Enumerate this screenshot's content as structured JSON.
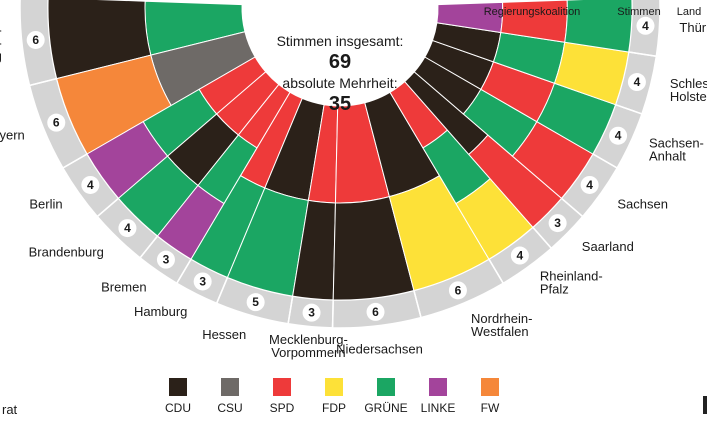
{
  "chart_data": {
    "type": "semicircle-seat-chart",
    "headers": {
      "coalition": "Regierungskoalition",
      "votes": "Stimmen",
      "state": "Land"
    },
    "center": {
      "total_label": "Stimmen insgesamt:",
      "total_value": "69",
      "majority_label": "absolute Mehrheit:",
      "majority_value": "35"
    },
    "colors": {
      "CDU": "#2b2119",
      "CSU": "#6e6a67",
      "SPD": "#ee3a3a",
      "FDP": "#fde138",
      "GRÜNE": "#1ba663",
      "LINKE": "#a3449b",
      "FW": "#f5873a"
    },
    "legend": [
      "CDU",
      "CSU",
      "SPD",
      "FDP",
      "GRÜNE",
      "LINKE",
      "FW"
    ],
    "states": [
      {
        "label": [
          "Baden-",
          "Württem-",
          "berg"
        ],
        "votes": 6,
        "coalition": [
          "GRÜNE",
          "CDU"
        ]
      },
      {
        "label": [
          "Bayern"
        ],
        "votes": 6,
        "coalition": [
          "CSU",
          "FW"
        ]
      },
      {
        "label": [
          "Berlin"
        ],
        "votes": 4,
        "coalition": [
          "SPD",
          "GRÜNE",
          "LINKE"
        ]
      },
      {
        "label": [
          "Brandenburg"
        ],
        "votes": 4,
        "coalition": [
          "SPD",
          "CDU",
          "GRÜNE"
        ]
      },
      {
        "label": [
          "Bremen"
        ],
        "votes": 3,
        "coalition": [
          "SPD",
          "GRÜNE",
          "LINKE"
        ]
      },
      {
        "label": [
          "Hamburg"
        ],
        "votes": 3,
        "coalition": [
          "SPD",
          "GRÜNE"
        ]
      },
      {
        "label": [
          "Hessen"
        ],
        "votes": 5,
        "coalition": [
          "CDU",
          "GRÜNE"
        ]
      },
      {
        "label": [
          "Mecklenburg-",
          "Vorpommern"
        ],
        "votes": 3,
        "coalition": [
          "SPD",
          "CDU"
        ]
      },
      {
        "label": [
          "Niedersachsen"
        ],
        "votes": 6,
        "coalition": [
          "SPD",
          "CDU"
        ]
      },
      {
        "label": [
          "Nordrhein-",
          "Westfalen"
        ],
        "votes": 6,
        "coalition": [
          "CDU",
          "FDP"
        ]
      },
      {
        "label": [
          "Rheinland-",
          "Pfalz"
        ],
        "votes": 4,
        "coalition": [
          "SPD",
          "GRÜNE",
          "FDP"
        ]
      },
      {
        "label": [
          "Saarland"
        ],
        "votes": 3,
        "coalition": [
          "CDU",
          "SPD"
        ]
      },
      {
        "label": [
          "Sachsen"
        ],
        "votes": 4,
        "coalition": [
          "CDU",
          "GRÜNE",
          "SPD"
        ]
      },
      {
        "label": [
          "Sachsen-",
          "Anhalt"
        ],
        "votes": 4,
        "coalition": [
          "CDU",
          "SPD",
          "GRÜNE"
        ]
      },
      {
        "label": [
          "Schleswig-",
          "Holstein"
        ],
        "votes": 4,
        "coalition": [
          "CDU",
          "GRÜNE",
          "FDP"
        ]
      },
      {
        "label": [
          "Thüringen"
        ],
        "votes": 4,
        "coalition": [
          "LINKE",
          "SPD",
          "GRÜNE"
        ]
      }
    ]
  },
  "footer": {
    "source_fragment": "rat"
  }
}
